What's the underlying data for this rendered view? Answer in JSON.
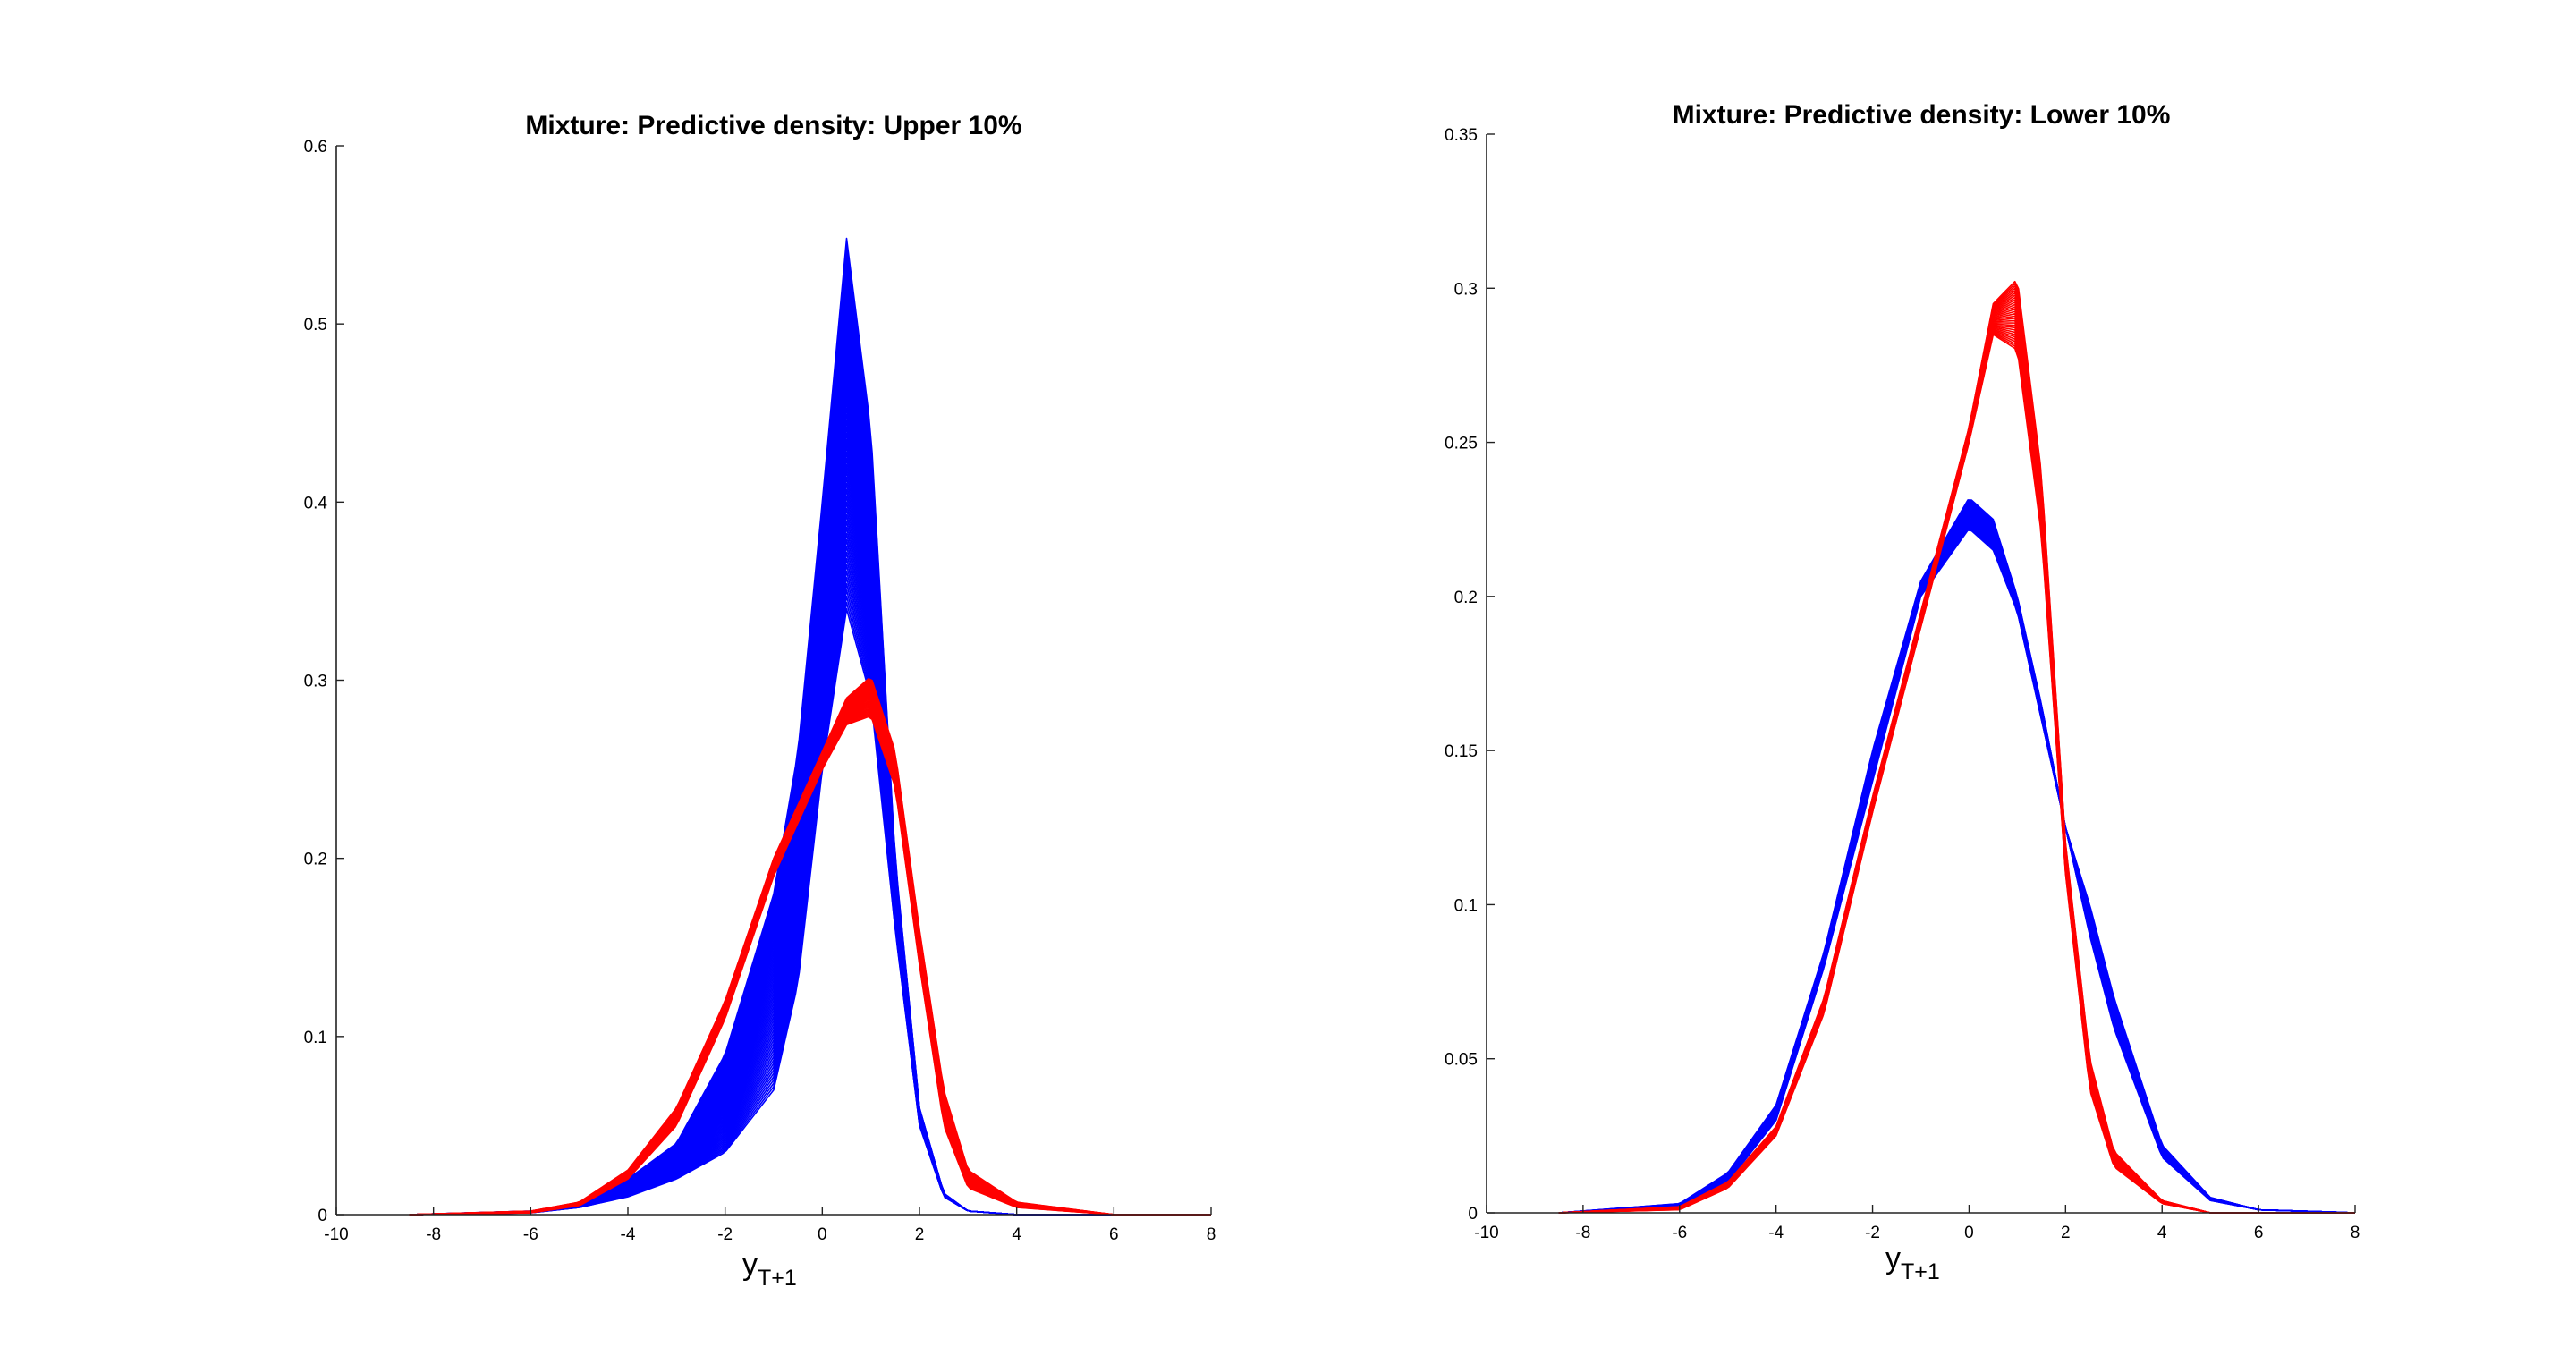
{
  "chart_data": [
    {
      "type": "line",
      "title": "Mixture: Predictive density: Upper 10%",
      "xlabel": "y",
      "xlabel_subscript": "T+1",
      "ylabel": "",
      "xlim": [
        -10,
        8
      ],
      "ylim": [
        0,
        0.6
      ],
      "xticks": [
        -10,
        -8,
        -6,
        -4,
        -2,
        0,
        2,
        4,
        6,
        8
      ],
      "xtick_labels": [
        "-10",
        "-8",
        "-6",
        "-4",
        "-2",
        "0",
        "2",
        "4",
        "6",
        "8"
      ],
      "yticks": [
        0,
        0.1,
        0.2,
        0.3,
        0.4,
        0.5,
        0.6
      ],
      "ytick_labels": [
        "0",
        "0.1",
        "0.2",
        "0.3",
        "0.4",
        "0.5",
        "0.6"
      ],
      "grid": false,
      "box": false,
      "series": [
        {
          "color": "#0000ff",
          "x": [
            -8.5,
            -6,
            -5,
            -4,
            -3,
            -2,
            -1,
            -0.5,
            0,
            0.5,
            1,
            1.5,
            2,
            2.5,
            3,
            4,
            6,
            8
          ],
          "y_envelope_min": [
            0,
            0.001,
            0.004,
            0.01,
            0.02,
            0.035,
            0.07,
            0.13,
            0.25,
            0.34,
            0.29,
            0.16,
            0.05,
            0.01,
            0.002,
            0,
            0,
            0
          ],
          "y_envelope_max": [
            0,
            0.002,
            0.006,
            0.02,
            0.04,
            0.09,
            0.18,
            0.26,
            0.4,
            0.548,
            0.44,
            0.2,
            0.06,
            0.012,
            0.002,
            0,
            0,
            0
          ],
          "n_curves": 60
        },
        {
          "color": "#ff0000",
          "x": [
            -8.5,
            -6,
            -5,
            -4,
            -3,
            -2,
            -1,
            -0.5,
            0,
            0.5,
            1,
            1.5,
            2,
            2.5,
            3,
            4,
            6,
            8
          ],
          "y_envelope_min": [
            0,
            0.001,
            0.005,
            0.02,
            0.05,
            0.11,
            0.19,
            0.22,
            0.25,
            0.275,
            0.28,
            0.24,
            0.14,
            0.05,
            0.015,
            0.004,
            0,
            0
          ],
          "y_envelope_max": [
            0,
            0.002,
            0.007,
            0.025,
            0.06,
            0.12,
            0.2,
            0.23,
            0.26,
            0.29,
            0.302,
            0.26,
            0.16,
            0.07,
            0.025,
            0.007,
            0,
            0
          ],
          "n_curves": 30
        }
      ]
    },
    {
      "type": "line",
      "title": "Mixture: Predictive density: Lower 10%",
      "xlabel": "y",
      "xlabel_subscript": "T+1",
      "ylabel": "",
      "xlim": [
        -10,
        8
      ],
      "ylim": [
        0,
        0.35
      ],
      "xticks": [
        -10,
        -8,
        -6,
        -4,
        -2,
        0,
        2,
        4,
        6,
        8
      ],
      "xtick_labels": [
        "-10",
        "-8",
        "-6",
        "-4",
        "-2",
        "0",
        "2",
        "4",
        "6",
        "8"
      ],
      "yticks": [
        0,
        0.05,
        0.1,
        0.15,
        0.2,
        0.25,
        0.3,
        0.35
      ],
      "ytick_labels": [
        "0",
        "0.05",
        "0.1",
        "0.15",
        "0.2",
        "0.25",
        "0.3",
        "0.35"
      ],
      "grid": false,
      "box": false,
      "series": [
        {
          "color": "#0000ff",
          "x": [
            -8.5,
            -6,
            -5,
            -4,
            -3,
            -2,
            -1,
            0,
            0.5,
            1,
            1.5,
            2,
            2.5,
            3,
            4,
            5,
            6,
            8
          ],
          "y_envelope_min": [
            0,
            0.002,
            0.01,
            0.03,
            0.08,
            0.14,
            0.2,
            0.222,
            0.215,
            0.195,
            0.16,
            0.125,
            0.09,
            0.06,
            0.018,
            0.004,
            0.001,
            0
          ],
          "y_envelope_max": [
            0,
            0.003,
            0.013,
            0.035,
            0.085,
            0.15,
            0.205,
            0.232,
            0.225,
            0.2,
            0.165,
            0.125,
            0.1,
            0.07,
            0.022,
            0.005,
            0.001,
            0
          ],
          "n_curves": 30
        },
        {
          "color": "#ff0000",
          "x": [
            -8.5,
            -6,
            -5,
            -4,
            -3,
            -2,
            -1,
            0,
            0.5,
            1,
            1.5,
            2,
            2.5,
            3,
            4,
            5,
            6,
            8
          ],
          "y_envelope_min": [
            0,
            0.001,
            0.008,
            0.025,
            0.065,
            0.13,
            0.19,
            0.25,
            0.285,
            0.28,
            0.22,
            0.11,
            0.04,
            0.015,
            0.003,
            0,
            0,
            0
          ],
          "y_envelope_max": [
            0,
            0.002,
            0.01,
            0.028,
            0.07,
            0.135,
            0.195,
            0.255,
            0.295,
            0.303,
            0.24,
            0.12,
            0.05,
            0.02,
            0.004,
            0,
            0,
            0
          ],
          "n_curves": 30
        }
      ]
    }
  ]
}
